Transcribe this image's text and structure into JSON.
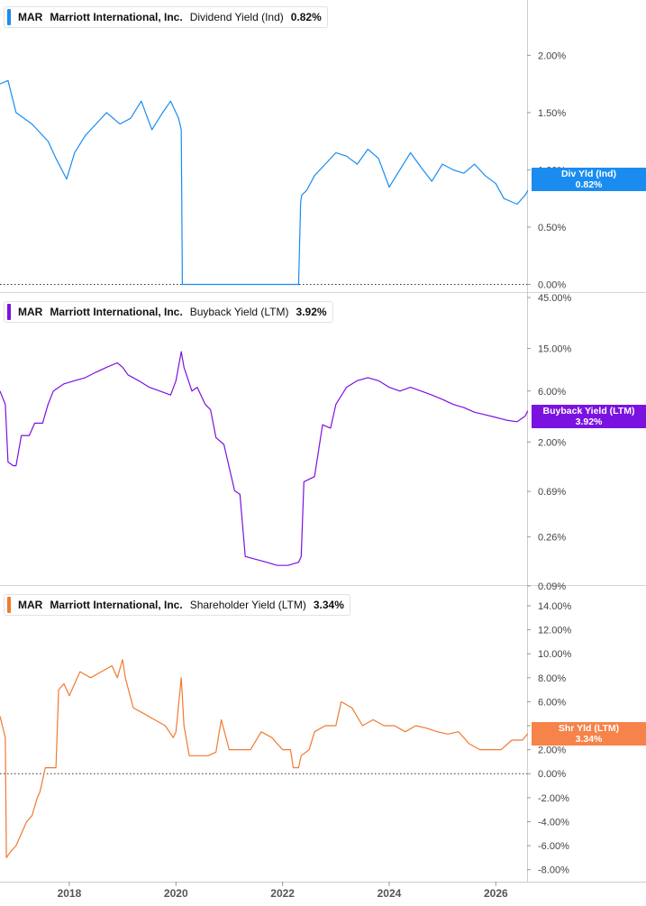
{
  "chart_data": [
    {
      "type": "line",
      "ticker": "MAR",
      "company": "Marriott International, Inc.",
      "metric": "Dividend Yield (Ind)",
      "current_value": "0.82%",
      "flag_label": "Div Yld (Ind)",
      "color": "#1a8cf0",
      "y_ticks": [
        "2.00%",
        "1.50%",
        "1.00%",
        "0.50%",
        "0.00%"
      ],
      "y_tick_values": [
        2.0,
        1.5,
        1.0,
        0.5,
        0.0
      ],
      "ylim": [
        -0.02,
        2.42
      ],
      "scale": "linear",
      "zero_line": true,
      "series": [
        {
          "x": [
            2016.7,
            2016.85,
            2017.0,
            2017.3,
            2017.6,
            2017.75,
            2017.95,
            2018.1,
            2018.3,
            2018.5,
            2018.7,
            2018.95,
            2019.15,
            2019.35,
            2019.55,
            2019.75,
            2019.9,
            2020.05,
            2020.1,
            2020.12,
            2020.2,
            2020.5,
            2020.9,
            2021.3,
            2021.7,
            2022.0,
            2022.3,
            2022.34,
            2022.36,
            2022.45,
            2022.6,
            2022.8,
            2023.0,
            2023.2,
            2023.4,
            2023.6,
            2023.8,
            2024.0,
            2024.2,
            2024.4,
            2024.6,
            2024.8,
            2025.0,
            2025.2,
            2025.4,
            2025.6,
            2025.8,
            2026.0,
            2026.15,
            2026.3,
            2026.4,
            2026.55,
            2026.6
          ],
          "values": [
            1.75,
            1.78,
            1.5,
            1.4,
            1.25,
            1.1,
            0.92,
            1.15,
            1.3,
            1.4,
            1.5,
            1.4,
            1.45,
            1.6,
            1.35,
            1.5,
            1.6,
            1.45,
            1.35,
            0.0,
            0.0,
            0.0,
            0.0,
            0.0,
            0.0,
            0.0,
            0.0,
            0.72,
            0.78,
            0.82,
            0.95,
            1.05,
            1.15,
            1.12,
            1.05,
            1.18,
            1.1,
            0.85,
            1.0,
            1.15,
            1.02,
            0.9,
            1.05,
            1.0,
            0.97,
            1.05,
            0.95,
            0.88,
            0.75,
            0.72,
            0.7,
            0.78,
            0.82
          ]
        }
      ]
    },
    {
      "type": "line",
      "ticker": "MAR",
      "company": "Marriott International, Inc.",
      "metric": "Buyback Yield (LTM)",
      "current_value": "3.92%",
      "flag_label": "Buyback Yield (LTM)",
      "flag_value": "3.92%",
      "color": "#7a12e0",
      "y_ticks": [
        "45.00%",
        "15.00%",
        "6.00%",
        "2.00%",
        "0.69%",
        "0.26%",
        "0.09%"
      ],
      "y_tick_values": [
        45,
        15,
        6,
        2,
        0.69,
        0.26,
        0.09
      ],
      "ylim": [
        0.09,
        45
      ],
      "scale": "log",
      "zero_line": false,
      "series": [
        {
          "x": [
            2016.7,
            2016.8,
            2016.85,
            2016.95,
            2017.0,
            2017.1,
            2017.25,
            2017.35,
            2017.5,
            2017.6,
            2017.7,
            2017.9,
            2018.1,
            2018.3,
            2018.5,
            2018.7,
            2018.9,
            2019.0,
            2019.1,
            2019.3,
            2019.5,
            2019.7,
            2019.9,
            2020.0,
            2020.1,
            2020.15,
            2020.3,
            2020.4,
            2020.55,
            2020.65,
            2020.75,
            2020.9,
            2021.1,
            2021.2,
            2021.3,
            2021.5,
            2021.7,
            2021.9,
            2022.1,
            2022.3,
            2022.35,
            2022.4,
            2022.6,
            2022.75,
            2022.9,
            2023.0,
            2023.2,
            2023.4,
            2023.6,
            2023.8,
            2024.0,
            2024.2,
            2024.4,
            2024.6,
            2024.8,
            2025.0,
            2025.2,
            2025.4,
            2025.6,
            2025.8,
            2026.0,
            2026.2,
            2026.4,
            2026.55,
            2026.6
          ],
          "values": [
            6.0,
            4.5,
            1.3,
            1.2,
            1.2,
            2.3,
            2.3,
            3.0,
            3.0,
            4.5,
            6.0,
            7.0,
            7.5,
            8.0,
            9.0,
            10.0,
            11.0,
            10.0,
            8.5,
            7.5,
            6.5,
            6.0,
            5.5,
            7.5,
            14.0,
            10.0,
            6.0,
            6.5,
            4.5,
            4.0,
            2.2,
            1.9,
            0.7,
            0.65,
            0.17,
            0.16,
            0.15,
            0.14,
            0.14,
            0.15,
            0.17,
            0.85,
            0.95,
            2.9,
            2.7,
            4.5,
            6.5,
            7.5,
            8.0,
            7.5,
            6.5,
            6.0,
            6.5,
            6.0,
            5.5,
            5.0,
            4.5,
            4.2,
            3.8,
            3.6,
            3.4,
            3.2,
            3.1,
            3.5,
            3.92
          ]
        }
      ]
    },
    {
      "type": "line",
      "ticker": "MAR",
      "company": "Marriott International, Inc.",
      "metric": "Shareholder Yield (LTM)",
      "current_value": "3.34%",
      "flag_label": "Shr Yld (LTM)",
      "flag_value": "3.34%",
      "color": "#f07a30",
      "y_ticks": [
        "14.00%",
        "12.00%",
        "10.00%",
        "8.00%",
        "6.00%",
        "4.00%",
        "2.00%",
        "0.00%",
        "-2.00%",
        "-4.00%",
        "-6.00%",
        "-8.00%"
      ],
      "y_tick_values": [
        14,
        12,
        10,
        8,
        6,
        4,
        2,
        0,
        -2,
        -4,
        -6,
        -8
      ],
      "ylim": [
        -9.0,
        15.2
      ],
      "scale": "linear",
      "zero_line": true,
      "series": [
        {
          "x": [
            2016.7,
            2016.8,
            2016.82,
            2016.9,
            2017.0,
            2017.1,
            2017.2,
            2017.3,
            2017.4,
            2017.45,
            2017.55,
            2017.7,
            2017.75,
            2017.8,
            2017.9,
            2018.0,
            2018.1,
            2018.2,
            2018.4,
            2018.6,
            2018.8,
            2018.9,
            2019.0,
            2019.05,
            2019.2,
            2019.4,
            2019.6,
            2019.8,
            2019.95,
            2020.0,
            2020.1,
            2020.15,
            2020.25,
            2020.4,
            2020.6,
            2020.75,
            2020.85,
            2021.0,
            2021.2,
            2021.3,
            2021.4,
            2021.6,
            2021.8,
            2022.0,
            2022.15,
            2022.2,
            2022.3,
            2022.35,
            2022.5,
            2022.6,
            2022.8,
            2022.9,
            2023.0,
            2023.1,
            2023.3,
            2023.5,
            2023.7,
            2023.9,
            2024.1,
            2024.3,
            2024.5,
            2024.7,
            2024.9,
            2025.1,
            2025.3,
            2025.5,
            2025.7,
            2025.9,
            2026.1,
            2026.3,
            2026.5,
            2026.6
          ],
          "values": [
            4.8,
            3.0,
            -7.0,
            -6.5,
            -6.0,
            -5.0,
            -4.0,
            -3.5,
            -2.0,
            -1.5,
            0.5,
            0.5,
            0.5,
            7.0,
            7.5,
            6.5,
            7.5,
            8.5,
            8.0,
            8.5,
            9.0,
            8.0,
            9.5,
            8.0,
            5.5,
            5.0,
            4.5,
            4.0,
            3.0,
            3.5,
            8.0,
            4.0,
            1.5,
            1.5,
            1.5,
            1.8,
            4.5,
            2.0,
            2.0,
            2.0,
            2.0,
            3.5,
            3.0,
            2.0,
            2.0,
            0.5,
            0.5,
            1.5,
            2.0,
            3.5,
            4.0,
            4.0,
            4.0,
            6.0,
            5.5,
            4.0,
            4.5,
            4.0,
            4.0,
            3.5,
            4.0,
            3.8,
            3.5,
            3.3,
            3.5,
            2.5,
            2.0,
            2.0,
            2.0,
            2.8,
            2.8,
            3.34
          ]
        }
      ]
    }
  ],
  "x_axis": {
    "ticks": [
      "2018",
      "2020",
      "2022",
      "2024",
      "2026"
    ],
    "tick_values": [
      2018,
      2020,
      2022,
      2024,
      2026
    ],
    "range": [
      2016.7,
      2027.6
    ]
  }
}
